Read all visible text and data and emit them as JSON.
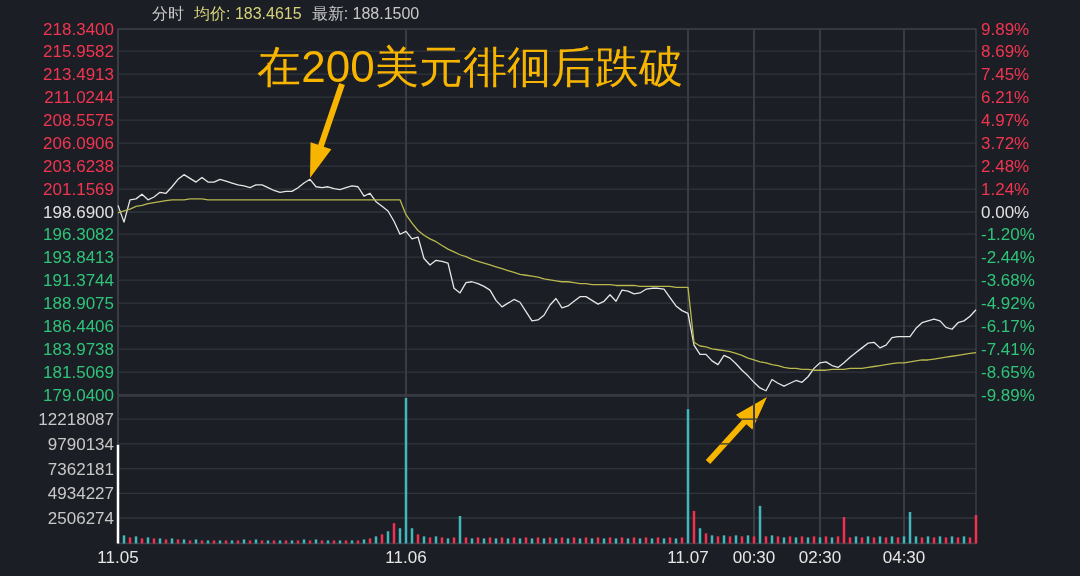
{
  "chart_data": [
    {
      "type": "line",
      "annotations": [
        "分时",
        "均价: 183.4615",
        "最新: 188.1500",
        "在200美元徘徊后跌破"
      ],
      "categories": [
        null,
        null,
        null,
        null,
        null,
        null,
        null,
        null,
        null,
        null,
        null,
        null,
        null,
        null,
        null,
        null,
        null,
        null,
        null,
        null,
        null,
        null,
        null,
        null,
        null,
        null,
        null,
        null,
        null,
        null,
        null,
        null,
        null,
        null,
        null,
        null,
        null,
        null,
        null,
        null,
        null,
        null,
        null,
        null,
        null,
        null,
        null,
        null,
        null,
        null,
        null,
        null,
        null,
        null,
        null,
        null,
        null,
        null,
        null,
        null,
        null,
        null,
        null,
        null,
        null,
        null,
        null,
        null,
        null,
        null,
        null,
        null,
        null,
        null,
        null,
        null,
        null,
        null,
        null,
        null,
        null,
        null,
        null,
        null,
        null,
        null,
        null,
        null,
        null,
        null,
        null,
        null,
        null,
        null,
        null,
        null,
        null,
        null,
        null,
        null,
        null,
        null,
        null,
        null,
        null,
        null,
        null,
        null,
        null,
        null,
        null,
        null,
        null,
        null,
        null,
        null,
        null,
        null,
        null,
        null,
        null,
        null,
        null,
        null,
        null,
        null,
        null,
        null,
        null,
        null,
        null,
        null,
        null,
        null,
        null,
        null,
        null,
        null,
        null,
        null,
        null,
        null,
        null,
        null
      ],
      "tick_labels": "y",
      "grid": true,
      "ylim": [
        179.04,
        218.34
      ],
      "yticks": [
        {
          "value": 218.34,
          "label": "218.3400"
        },
        {
          "value": 215.9582,
          "label": "215.9582"
        },
        {
          "value": 213.4913,
          "label": "213.4913"
        },
        {
          "value": 211.0244,
          "label": "211.0244"
        },
        {
          "value": 208.5575,
          "label": "208.5575"
        },
        {
          "value": 206.0906,
          "label": "206.0906"
        },
        {
          "value": 203.6238,
          "label": "203.6238"
        },
        {
          "value": 201.1569,
          "label": "201.1569"
        },
        {
          "value": 198.69,
          "label": "198.6900"
        },
        {
          "value": 196.3082,
          "label": "196.3082"
        },
        {
          "value": 193.8413,
          "label": "193.8413"
        },
        {
          "value": 191.3744,
          "label": "191.3744"
        },
        {
          "value": 188.9075,
          "label": "188.9075"
        },
        {
          "value": 186.4406,
          "label": "186.4406"
        },
        {
          "value": 183.9738,
          "label": "183.9738"
        },
        {
          "value": 181.5069,
          "label": "181.5069"
        },
        {
          "value": 179.04,
          "label": "179.0400"
        }
      ],
      "y2lim": [
        -9.89,
        9.89
      ],
      "y2ticks": [
        {
          "value": 9.89,
          "label": "9.89%"
        },
        {
          "value": 8.69,
          "label": "8.69%"
        },
        {
          "value": 7.45,
          "label": "7.45%"
        },
        {
          "value": 6.21,
          "label": "6.21%"
        },
        {
          "value": 4.97,
          "label": "4.97%"
        },
        {
          "value": 3.72,
          "label": "3.72%"
        },
        {
          "value": 2.48,
          "label": "2.48%"
        },
        {
          "value": 1.24,
          "label": "1.24%"
        },
        {
          "value": 0,
          "label": "0.00%"
        },
        {
          "value": -1.2,
          "label": "-1.20%"
        },
        {
          "value": -2.44,
          "label": "-2.44%"
        },
        {
          "value": -3.68,
          "label": "-3.68%"
        },
        {
          "value": -4.92,
          "label": "-4.92%"
        },
        {
          "value": -6.17,
          "label": "-6.17%"
        },
        {
          "value": -7.41,
          "label": "-7.41%"
        },
        {
          "value": -8.65,
          "label": "-8.65%"
        },
        {
          "value": -9.89,
          "label": "-9.89%"
        }
      ],
      "series": [
        {
          "color": "#e6e6e6",
          "values": [
            199.4,
            197.6,
            200.0,
            200.1,
            200.6,
            200.0,
            200.3,
            200.8,
            200.7,
            201.4,
            202.2,
            202.7,
            202.3,
            201.9,
            202.4,
            201.9,
            201.9,
            202.2,
            202.0,
            201.8,
            201.6,
            201.5,
            201.3,
            201.6,
            201.6,
            201.3,
            201.0,
            200.8,
            200.9,
            200.9,
            201.3,
            201.8,
            202.2,
            201.4,
            201.3,
            201.4,
            201.2,
            201.1,
            201.3,
            201.5,
            201.4,
            200.4,
            200.7,
            199.8,
            199.3,
            198.8,
            197.7,
            196.3,
            196.6,
            195.8,
            196.0,
            193.7,
            193.0,
            193.5,
            193.4,
            193.2,
            190.5,
            190.0,
            191.1,
            191.2,
            191.0,
            190.7,
            190.3,
            189.2,
            188.5,
            188.9,
            189.3,
            189.0,
            188.0,
            187.0,
            187.1,
            187.6,
            188.7,
            189.4,
            188.4,
            188.6,
            189.1,
            189.6,
            189.6,
            189.2,
            188.8,
            189.1,
            189.8,
            189.1,
            190.3,
            190.2,
            189.9,
            190.0,
            190.4,
            190.5,
            190.5,
            190.4,
            189.5,
            188.6,
            188.1,
            187.8,
            184.4,
            183.4,
            183.4,
            182.7,
            182.3,
            183.3,
            183.0,
            182.4,
            181.7,
            181.1,
            180.4,
            179.8,
            179.5,
            180.7,
            180.3,
            180.0,
            180.3,
            180.6,
            180.4,
            181.0,
            181.9,
            182.5,
            182.6,
            182.2,
            182.0,
            182.5,
            183.1,
            183.6,
            184.1,
            184.6,
            184.7,
            184.1,
            184.4,
            185.2,
            185.3,
            185.3,
            185.3,
            186.2,
            186.8,
            187.0,
            187.2,
            187.0,
            186.3,
            186.1,
            186.8,
            187.0,
            187.5,
            188.2
          ]
        },
        {
          "color": "#b8b84e",
          "values": [
            198.6,
            198.8,
            199.0,
            199.3,
            199.4,
            199.6,
            199.7,
            199.8,
            199.9,
            200.0,
            200.0,
            200.0,
            200.1,
            200.1,
            200.1,
            200.0,
            200.0,
            200.0,
            200.0,
            200.0,
            200.0,
            200.0,
            200.0,
            200.0,
            200.0,
            200.0,
            200.0,
            200.0,
            200.0,
            200.0,
            200.0,
            200.0,
            200.0,
            200.0,
            200.0,
            200.0,
            200.0,
            200.0,
            200.0,
            200.0,
            200.0,
            200.0,
            200.0,
            200.0,
            200.0,
            200.0,
            200.0,
            200.0,
            198.4,
            197.5,
            196.7,
            196.2,
            195.8,
            195.5,
            195.1,
            194.7,
            194.4,
            194.1,
            193.9,
            193.6,
            193.4,
            193.2,
            193.0,
            192.8,
            192.6,
            192.4,
            192.2,
            192.0,
            191.9,
            191.8,
            191.7,
            191.5,
            191.4,
            191.3,
            191.2,
            191.2,
            191.1,
            191.0,
            191.0,
            190.9,
            190.9,
            190.9,
            190.9,
            190.8,
            190.8,
            190.8,
            190.8,
            190.7,
            190.7,
            190.7,
            190.7,
            190.7,
            190.7,
            190.6,
            190.6,
            190.6,
            184.7,
            184.3,
            184.2,
            184.0,
            183.9,
            183.8,
            183.7,
            183.5,
            183.3,
            183.0,
            182.8,
            182.6,
            182.5,
            182.3,
            182.2,
            182.0,
            181.9,
            181.9,
            181.8,
            181.8,
            181.7,
            181.7,
            181.7,
            181.8,
            181.8,
            181.8,
            181.9,
            181.9,
            181.9,
            182.0,
            182.1,
            182.2,
            182.3,
            182.4,
            182.5,
            182.5,
            182.6,
            182.7,
            182.8,
            182.8,
            182.9,
            183.0,
            183.1,
            183.2,
            183.3,
            183.4,
            183.5,
            183.6
          ]
        }
      ]
    },
    {
      "type": "bar",
      "grid": true,
      "categories": [
        "11.05",
        null,
        null,
        null,
        null,
        null,
        null,
        null,
        null,
        null,
        null,
        null,
        null,
        null,
        null,
        null,
        null,
        null,
        null,
        null,
        null,
        null,
        null,
        null,
        null,
        null,
        null,
        null,
        null,
        null,
        null,
        null,
        null,
        null,
        null,
        null,
        null,
        null,
        null,
        null,
        null,
        null,
        null,
        null,
        null,
        null,
        null,
        null,
        "11.06",
        null,
        null,
        null,
        null,
        null,
        null,
        null,
        null,
        null,
        null,
        null,
        null,
        null,
        null,
        null,
        null,
        null,
        null,
        null,
        null,
        null,
        null,
        null,
        null,
        null,
        null,
        null,
        null,
        null,
        null,
        null,
        null,
        null,
        null,
        null,
        null,
        null,
        null,
        null,
        null,
        null,
        null,
        null,
        null,
        null,
        null,
        "11.07",
        null,
        null,
        null,
        null,
        null,
        null,
        null,
        null,
        null,
        null,
        "00:30",
        null,
        null,
        null,
        null,
        null,
        null,
        null,
        null,
        null,
        null,
        "02:30",
        null,
        null,
        null,
        null,
        null,
        null,
        null,
        null,
        null,
        null,
        null,
        null,
        null,
        "04:30",
        null,
        null,
        null,
        null,
        null,
        null,
        null,
        null,
        null,
        null,
        null,
        null
      ],
      "ylim": [
        0,
        14500000
      ],
      "yticks": [
        2506274,
        4934227,
        7362181,
        9790134,
        12218087
      ],
      "values": [
        9700000,
        800000,
        600000,
        700000,
        500000,
        600000,
        500000,
        500000,
        400000,
        500000,
        400000,
        400000,
        300000,
        400000,
        300000,
        300000,
        300000,
        300000,
        300000,
        300000,
        300000,
        400000,
        300000,
        400000,
        300000,
        300000,
        300000,
        300000,
        300000,
        300000,
        300000,
        400000,
        300000,
        400000,
        300000,
        300000,
        300000,
        300000,
        300000,
        300000,
        300000,
        400000,
        500000,
        700000,
        900000,
        1200000,
        2000000,
        1500000,
        14300000,
        1500000,
        900000,
        700000,
        600000,
        700000,
        600000,
        500000,
        600000,
        2700000,
        600000,
        500000,
        600000,
        500000,
        600000,
        500000,
        600000,
        500000,
        600000,
        500000,
        600000,
        500000,
        600000,
        500000,
        600000,
        500000,
        600000,
        500000,
        600000,
        500000,
        600000,
        500000,
        600000,
        500000,
        600000,
        500000,
        600000,
        500000,
        600000,
        500000,
        600000,
        500000,
        600000,
        500000,
        600000,
        500000,
        600000,
        13200000,
        3200000,
        1500000,
        1000000,
        800000,
        700000,
        800000,
        700000,
        800000,
        700000,
        800000,
        700000,
        3700000,
        700000,
        800000,
        700000,
        600000,
        700000,
        600000,
        700000,
        600000,
        700000,
        600000,
        700000,
        600000,
        700000,
        2600000,
        600000,
        700000,
        600000,
        700000,
        600000,
        700000,
        600000,
        700000,
        600000,
        700000,
        3100000,
        700000,
        600000,
        700000,
        600000,
        700000,
        600000,
        700000,
        600000,
        700000,
        600000,
        2800000
      ],
      "colors": [
        "#ffffff",
        "#42b8bd",
        "#f0314f",
        "#42b8bd",
        "#f0314f",
        "#42b8bd",
        "#f0314f",
        "#42b8bd",
        "#f0314f",
        "#42b8bd",
        "#f0314f",
        "#42b8bd",
        "#f0314f",
        "#42b8bd",
        "#f0314f",
        "#42b8bd",
        "#f0314f",
        "#42b8bd",
        "#f0314f",
        "#42b8bd",
        "#f0314f",
        "#42b8bd",
        "#f0314f",
        "#42b8bd",
        "#f0314f",
        "#42b8bd",
        "#f0314f",
        "#42b8bd",
        "#f0314f",
        "#42b8bd",
        "#f0314f",
        "#42b8bd",
        "#f0314f",
        "#42b8bd",
        "#f0314f",
        "#42b8bd",
        "#f0314f",
        "#42b8bd",
        "#f0314f",
        "#42b8bd",
        "#f0314f",
        "#42b8bd",
        "#f0314f",
        "#42b8bd",
        "#f0314f",
        "#42b8bd",
        "#f0314f",
        "#42b8bd",
        "#42b8bd",
        "#42b8bd",
        "#f0314f",
        "#42b8bd",
        "#f0314f",
        "#42b8bd",
        "#f0314f",
        "#42b8bd",
        "#f0314f",
        "#42b8bd",
        "#f0314f",
        "#42b8bd",
        "#f0314f",
        "#42b8bd",
        "#f0314f",
        "#42b8bd",
        "#f0314f",
        "#42b8bd",
        "#f0314f",
        "#42b8bd",
        "#f0314f",
        "#42b8bd",
        "#f0314f",
        "#42b8bd",
        "#f0314f",
        "#42b8bd",
        "#f0314f",
        "#42b8bd",
        "#f0314f",
        "#42b8bd",
        "#f0314f",
        "#42b8bd",
        "#f0314f",
        "#42b8bd",
        "#f0314f",
        "#42b8bd",
        "#f0314f",
        "#42b8bd",
        "#f0314f",
        "#42b8bd",
        "#f0314f",
        "#42b8bd",
        "#f0314f",
        "#42b8bd",
        "#f0314f",
        "#42b8bd",
        "#f0314f",
        "#42b8bd",
        "#f0314f",
        "#42b8bd",
        "#f0314f",
        "#42b8bd",
        "#f0314f",
        "#42b8bd",
        "#f0314f",
        "#42b8bd",
        "#f0314f",
        "#42b8bd",
        "#f0314f",
        "#42b8bd",
        "#f0314f",
        "#42b8bd",
        "#f0314f",
        "#42b8bd",
        "#f0314f",
        "#42b8bd",
        "#f0314f",
        "#42b8bd",
        "#f0314f",
        "#42b8bd",
        "#f0314f",
        "#42b8bd",
        "#f0314f",
        "#f0314f",
        "#f0314f",
        "#42b8bd",
        "#f0314f",
        "#42b8bd",
        "#f0314f",
        "#42b8bd",
        "#f0314f",
        "#42b8bd",
        "#f0314f",
        "#42b8bd",
        "#42b8bd",
        "#42b8bd",
        "#f0314f",
        "#42b8bd",
        "#f0314f",
        "#42b8bd",
        "#f0314f",
        "#42b8bd",
        "#f0314f",
        "#42b8bd",
        "#f0314f",
        "#f0314f"
      ]
    }
  ]
}
